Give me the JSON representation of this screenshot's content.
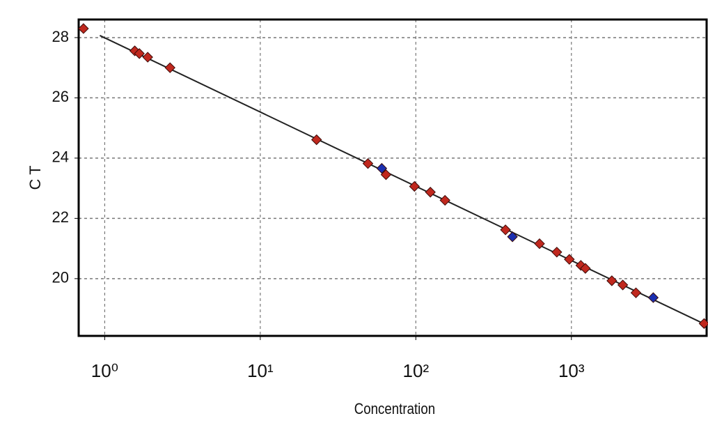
{
  "chart_data": {
    "type": "scatter",
    "x_label": "Concentration",
    "y_label": "C T",
    "log_x": true,
    "grid": true,
    "xlim": [
      0.68,
      7400
    ],
    "ylim": [
      18.1,
      28.6
    ],
    "xticks": [
      {
        "value": 1,
        "label": "10⁰"
      },
      {
        "value": 10,
        "label": "10¹"
      },
      {
        "value": 100,
        "label": "10²"
      },
      {
        "value": 1000,
        "label": "10³"
      }
    ],
    "yticks": [
      20,
      22,
      24,
      26,
      28
    ],
    "series": [
      {
        "color": "#c0281e",
        "x": [
          0.73,
          1.56,
          1.67,
          1.89,
          2.63,
          23.0,
          49.2,
          64.3,
          98,
          124,
          154,
          377,
          624,
          806,
          970,
          1150,
          1230,
          1820,
          2140,
          2600,
          7130
        ],
        "values": [
          28.3,
          27.56,
          27.47,
          27.35,
          27.0,
          24.61,
          23.82,
          23.45,
          23.06,
          22.87,
          22.6,
          21.62,
          21.16,
          20.88,
          20.64,
          20.44,
          20.34,
          19.93,
          19.79,
          19.53,
          18.51
        ]
      },
      {
        "color": "#1a2fb0",
        "x": [
          60.4,
          418,
          3360
        ],
        "values": [
          23.66,
          21.39,
          19.37
        ]
      }
    ],
    "fit_line": {
      "x": [
        0.93,
        7400
      ],
      "values": [
        28.07,
        18.46
      ],
      "color": "#222222"
    }
  }
}
